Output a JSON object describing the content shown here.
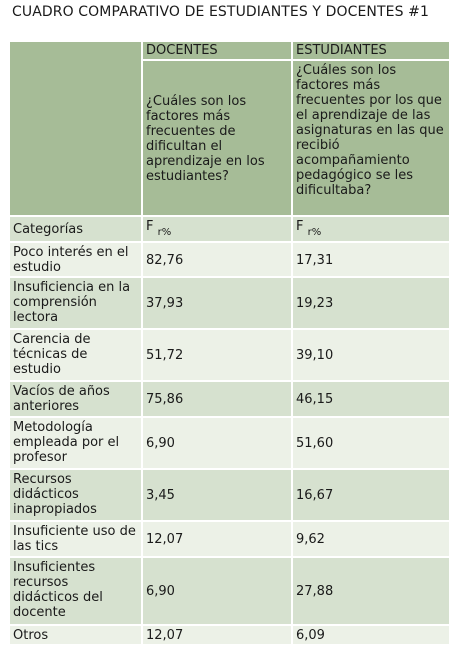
{
  "caption": "CUADRO COMPARATIVO DE ESTUDIANTES Y DOCENTES #1",
  "header": {
    "docentes": "DOCENTES",
    "estudiantes": "ESTUDIANTES",
    "question_docentes": "¿Cuáles son los factores más frecuentes de dificultan el aprendizaje en los estudiantes?",
    "question_estudiantes": "¿Cuáles son los factores más frecuentes por los que el aprendizaje de las asignaturas en las que recibió acompañamiento pedagógico se les dificultaba?"
  },
  "subheader": {
    "categorias": "Categorías",
    "freq_main": "F",
    "freq_sub": "r%"
  },
  "rows": [
    {
      "categoria": "Poco interés en el estudio",
      "docentes": "82,76",
      "estudiantes": "17,31"
    },
    {
      "categoria": "Insuficiencia en la comprensión lectora",
      "docentes": "37,93",
      "estudiantes": "19,23"
    },
    {
      "categoria": "Carencia de técnicas de estudio",
      "docentes": "51,72",
      "estudiantes": "39,10"
    },
    {
      "categoria": "Vacíos de años anteriores",
      "docentes": "75,86",
      "estudiantes": "46,15"
    },
    {
      "categoria": "Metodología empleada por el profesor",
      "docentes": "6,90",
      "estudiantes": "51,60"
    },
    {
      "categoria": "Recursos didácticos inapropiados",
      "docentes": "3,45",
      "estudiantes": "16,67"
    },
    {
      "categoria": "Insuficiente uso de las tics",
      "docentes": "12,07",
      "estudiantes": "9,62"
    },
    {
      "categoria": "Insuficientes recursos didácticos del docente",
      "docentes": "6,90",
      "estudiantes": "27,88"
    },
    {
      "categoria": "Otros",
      "docentes": "12,07",
      "estudiantes": "6,09"
    }
  ],
  "colors": {
    "header_green": "#a6bc97",
    "row_dark": "#d6e1cf",
    "row_light": "#ecf1e7"
  }
}
